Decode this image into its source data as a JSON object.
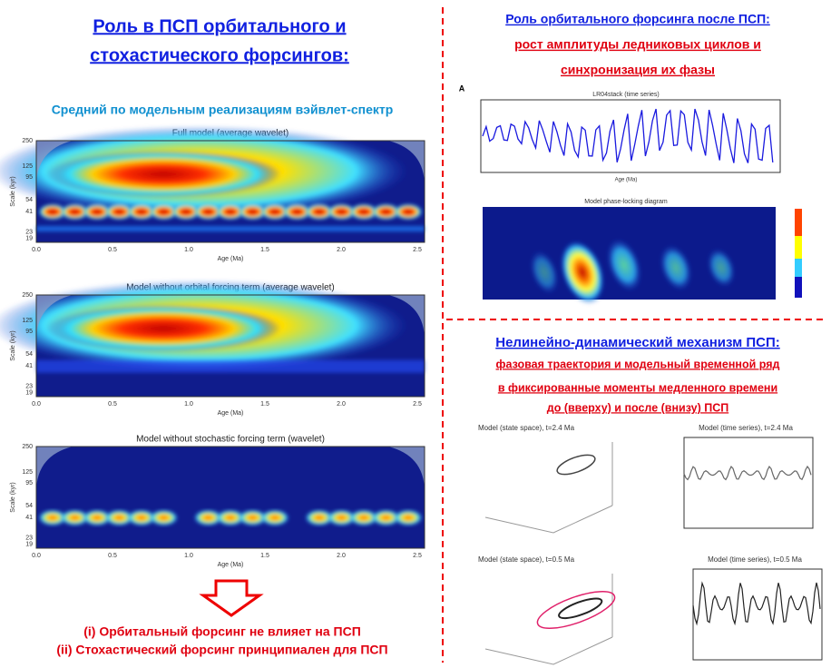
{
  "left": {
    "title_lines": [
      "Роль в ПСП орбитального и",
      "стохастического форсингов:"
    ],
    "subtitle": "Средний по модельным реализациям вэйвлет-спектр",
    "panels": [
      {
        "title": "Full model (average wavelet)"
      },
      {
        "title": "Model without orbital forcing term (average wavelet)"
      },
      {
        "title": "Model without stochastic forcing term (wavelet)"
      }
    ],
    "y_label": "Scale (kyr)",
    "x_label": "Age (Ma)",
    "y_ticks": [
      "250",
      "125",
      "95",
      "54",
      "41",
      "23",
      "19"
    ],
    "x_ticks": [
      "0.0",
      "0.5",
      "1.0",
      "1.5",
      "2.0",
      "2.5"
    ],
    "conclusions": [
      "(i) Орбитальный форсинг не влияет на ПСП",
      "(ii) Стохастический форсинг принципиален для ПСП"
    ]
  },
  "right_top": {
    "title_lines": [
      "Роль орбитального форсинга после ПСП:",
      "рост амплитуды ледниковых циклов и",
      "синхронизация их фазы"
    ],
    "panel_letter": "A",
    "series_title": "LR04stack (time series)",
    "series_x_label": "Age (Ma)",
    "heatmap_title": "Model phase-locking diagram"
  },
  "right_bottom": {
    "title": "Нелинейно-динамический механизм ПСП:",
    "lines": [
      "фазовая траектория и модельный временной ряд",
      "в фиксированные моменты медленного времени",
      "до (вверху) и после (внизу) ПСП"
    ],
    "panels": [
      "Model (state space), t=2.4 Ma",
      "Model (time series), t=2.4 Ma",
      "Model (state space), t=0.5 Ma",
      "Model (time series), t=0.5 Ma"
    ]
  }
}
